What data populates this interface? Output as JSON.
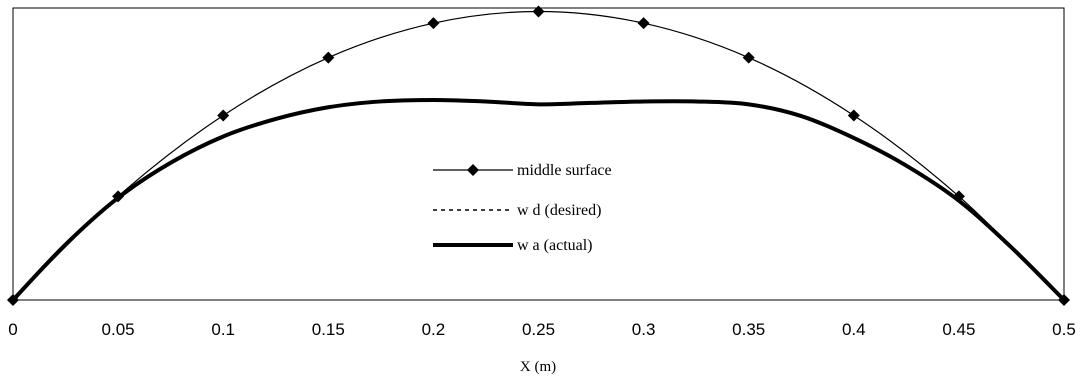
{
  "chart_data": {
    "type": "line",
    "title": "",
    "xlabel": "X (m)",
    "ylabel": "",
    "xlim": [
      0,
      0.5
    ],
    "ylim": [
      0,
      1.0
    ],
    "x_ticks": [
      "0",
      "0.05",
      "0.1",
      "0.15",
      "0.2",
      "0.25",
      "0.3",
      "0.35",
      "0.4",
      "0.45",
      "0.5"
    ],
    "grid": false,
    "legend_position": "center",
    "series": [
      {
        "name": "middle surface",
        "style": "thin solid with diamond markers",
        "color": "#000000",
        "x": [
          0,
          0.05,
          0.1,
          0.15,
          0.2,
          0.25,
          0.3,
          0.35,
          0.4,
          0.45,
          0.5
        ],
        "y": [
          0,
          0.355,
          0.632,
          0.83,
          0.948,
          0.988,
          0.948,
          0.83,
          0.632,
          0.355,
          0
        ]
      },
      {
        "name": "w d (desired)",
        "style": "dashed",
        "color": "#000000",
        "x": [
          0,
          0.025,
          0.05,
          0.075,
          0.1,
          0.125,
          0.15,
          0.175,
          0.2,
          0.225,
          0.25,
          0.275,
          0.3,
          0.325,
          0.35,
          0.375,
          0.4,
          0.425,
          0.45,
          0.475,
          0.5
        ],
        "y": [
          0,
          0.19,
          0.35,
          0.47,
          0.56,
          0.62,
          0.66,
          0.68,
          0.685,
          0.68,
          0.67,
          0.675,
          0.68,
          0.68,
          0.67,
          0.63,
          0.555,
          0.46,
          0.34,
          0.18,
          0
        ]
      },
      {
        "name": "w a (actual)",
        "style": "thick solid",
        "color": "#000000",
        "x": [
          0,
          0.025,
          0.05,
          0.075,
          0.1,
          0.125,
          0.15,
          0.175,
          0.2,
          0.225,
          0.25,
          0.275,
          0.3,
          0.325,
          0.35,
          0.375,
          0.4,
          0.425,
          0.45,
          0.475,
          0.5
        ],
        "y": [
          0,
          0.19,
          0.35,
          0.47,
          0.56,
          0.62,
          0.66,
          0.68,
          0.685,
          0.68,
          0.67,
          0.675,
          0.68,
          0.68,
          0.67,
          0.63,
          0.555,
          0.46,
          0.34,
          0.18,
          0
        ]
      }
    ]
  }
}
